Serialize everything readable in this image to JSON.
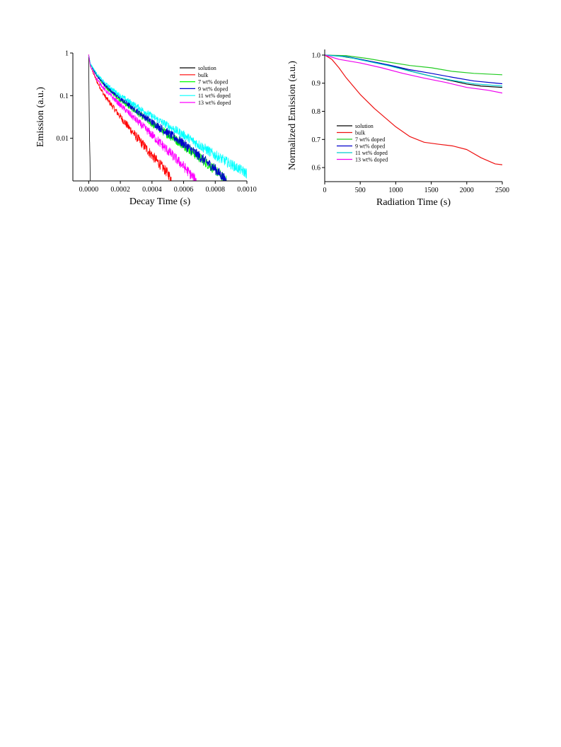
{
  "chart_data": [
    {
      "type": "line",
      "xlabel": "Decay Time (s)",
      "ylabel": "Emission (a.u.)",
      "xlim": [
        -0.0001,
        0.001
      ],
      "ylim": [
        0.001,
        1
      ],
      "yscale": "log",
      "xticks": [
        0.0,
        0.0002,
        0.0004,
        0.0006,
        0.0008,
        0.001
      ],
      "xtick_labels": [
        "0.0000",
        "0.0002",
        "0.0004",
        "0.0006",
        "0.0008",
        "0.0010"
      ],
      "yticks": [
        1,
        0.1,
        0.01
      ],
      "ytick_labels": [
        "1",
        "0.1",
        "0.01"
      ],
      "legend_position": "top-right",
      "noisy": true,
      "series": [
        {
          "name": "solution",
          "color": "#000000",
          "x": [
            0.0,
            2e-06,
            5e-06,
            8e-06,
            1e-05
          ],
          "y": [
            0.9,
            0.1,
            0.01,
            0.003,
            0.001
          ]
        },
        {
          "name": "bulk",
          "color": "#ff0000",
          "x": [
            0.0,
            1e-05,
            5e-05,
            0.0001,
            0.0002,
            0.0003,
            0.0004,
            0.0005,
            0.00053
          ],
          "y": [
            0.9,
            0.5,
            0.22,
            0.1,
            0.032,
            0.011,
            0.004,
            0.0015,
            0.001
          ]
        },
        {
          "name": "7 wt% doped",
          "color": "#00ff00",
          "x": [
            0.0,
            1e-05,
            5e-05,
            0.0001,
            0.0002,
            0.0004,
            0.0006,
            0.0008,
            0.00087
          ],
          "y": [
            0.9,
            0.55,
            0.3,
            0.17,
            0.08,
            0.022,
            0.007,
            0.0018,
            0.001
          ]
        },
        {
          "name": "9 wt% doped",
          "color": "#0000cc",
          "x": [
            0.0,
            1e-05,
            5e-05,
            0.0001,
            0.0002,
            0.0004,
            0.0006,
            0.0008,
            0.00087
          ],
          "y": [
            0.9,
            0.56,
            0.3,
            0.18,
            0.085,
            0.024,
            0.0075,
            0.0019,
            0.001
          ]
        },
        {
          "name": "11 wt% doped",
          "color": "#00ffff",
          "x": [
            0.0,
            1e-05,
            5e-05,
            0.0001,
            0.0002,
            0.0004,
            0.0006,
            0.0008,
            0.001
          ],
          "y": [
            0.9,
            0.57,
            0.33,
            0.2,
            0.1,
            0.033,
            0.012,
            0.004,
            0.0015
          ]
        },
        {
          "name": "13 wt% doped",
          "color": "#ff00ff",
          "x": [
            0.0,
            1e-05,
            5e-05,
            0.0001,
            0.0002,
            0.0004,
            0.0006,
            0.00068
          ],
          "y": [
            0.9,
            0.5,
            0.25,
            0.14,
            0.06,
            0.012,
            0.0022,
            0.001
          ]
        }
      ]
    },
    {
      "type": "line",
      "xlabel": "Radiation Time (s)",
      "ylabel": "Normalized Emission (a.u.)",
      "xlim": [
        0,
        2500
      ],
      "ylim": [
        0.55,
        1.02
      ],
      "xticks": [
        0,
        500,
        1000,
        1500,
        2000,
        2500
      ],
      "xtick_labels": [
        "0",
        "500",
        "1000",
        "1500",
        "2000",
        "2500"
      ],
      "yticks": [
        0.6,
        0.7,
        0.8,
        0.9,
        1.0
      ],
      "ytick_labels": [
        "0.6",
        "0.7",
        "0.8",
        "0.9",
        "1.0"
      ],
      "legend_position": "bottom-left",
      "series": [
        {
          "name": "solution",
          "color": "#000000",
          "x": [
            0,
            200,
            500,
            800,
            1000,
            1300,
            1500,
            1800,
            2000,
            2200,
            2500
          ],
          "y": [
            1.0,
            0.997,
            0.985,
            0.97,
            0.958,
            0.937,
            0.925,
            0.908,
            0.897,
            0.89,
            0.885
          ]
        },
        {
          "name": "bulk",
          "color": "#ee1111",
          "x": [
            0,
            100,
            200,
            300,
            500,
            700,
            1000,
            1200,
            1400,
            1600,
            1800,
            2000,
            2200,
            2400,
            2500
          ],
          "y": [
            1.0,
            0.985,
            0.955,
            0.92,
            0.86,
            0.81,
            0.745,
            0.71,
            0.69,
            0.683,
            0.677,
            0.664,
            0.635,
            0.613,
            0.61
          ]
        },
        {
          "name": "7 wt% doped",
          "color": "#22cc22",
          "x": [
            0,
            300,
            600,
            900,
            1200,
            1500,
            1800,
            2100,
            2500
          ],
          "y": [
            1.0,
            0.998,
            0.988,
            0.975,
            0.963,
            0.955,
            0.942,
            0.935,
            0.93
          ]
        },
        {
          "name": "9 wt% doped",
          "color": "#0000cc",
          "x": [
            0,
            300,
            600,
            900,
            1200,
            1500,
            1800,
            2100,
            2500
          ],
          "y": [
            1.0,
            0.995,
            0.98,
            0.965,
            0.948,
            0.935,
            0.921,
            0.908,
            0.898
          ]
        },
        {
          "name": "11 wt% doped",
          "color": "#00cccc",
          "x": [
            0,
            300,
            600,
            900,
            1200,
            1500,
            1800,
            2100,
            2500
          ],
          "y": [
            1.0,
            0.994,
            0.978,
            0.962,
            0.943,
            0.925,
            0.91,
            0.898,
            0.89
          ]
        },
        {
          "name": "13 wt% doped",
          "color": "#ee00ee",
          "x": [
            0,
            200,
            500,
            800,
            1100,
            1400,
            1700,
            2000,
            2300,
            2500
          ],
          "y": [
            1.0,
            0.985,
            0.972,
            0.955,
            0.935,
            0.918,
            0.903,
            0.885,
            0.875,
            0.865
          ]
        }
      ]
    }
  ]
}
